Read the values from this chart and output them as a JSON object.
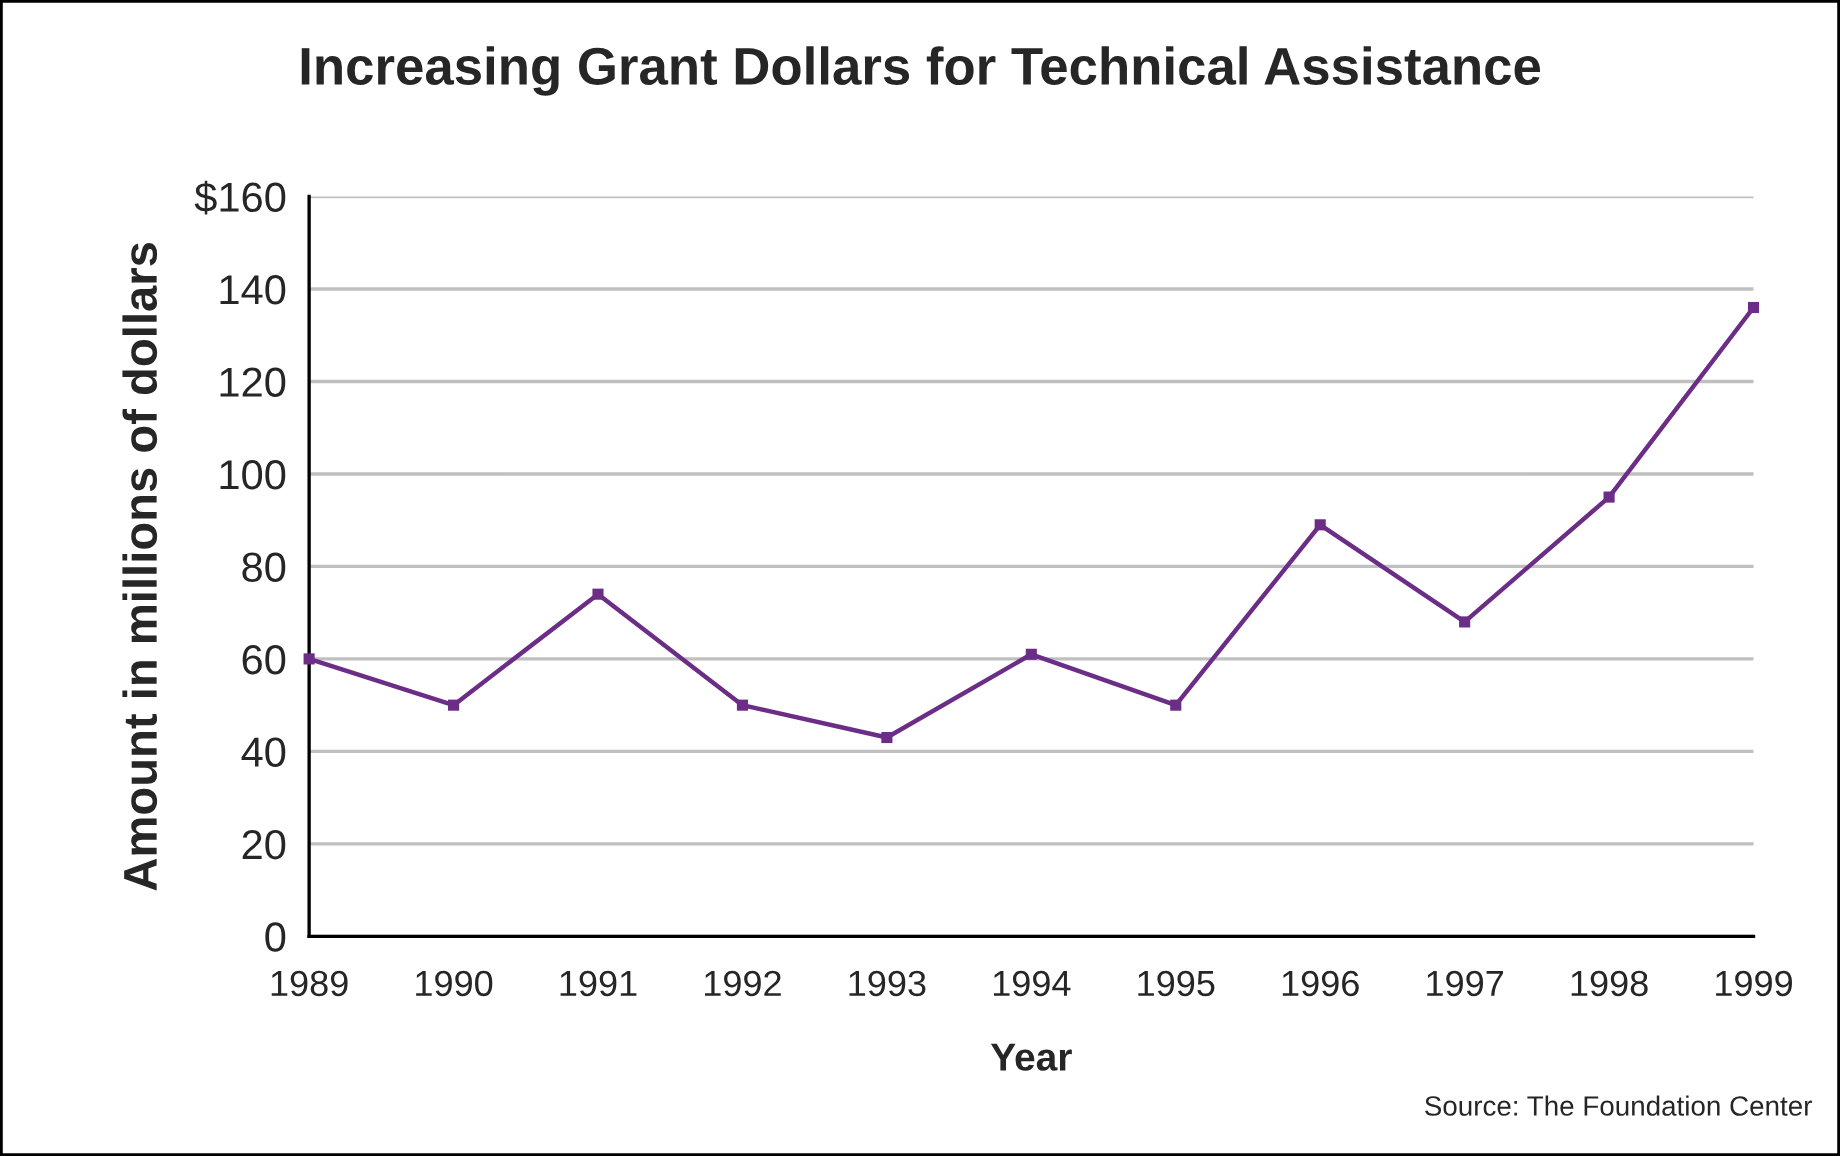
{
  "chart_data": {
    "type": "line",
    "title": "Increasing Grant Dollars for Technical Assistance",
    "xlabel": "Year",
    "ylabel": "Amount in millions of dollars",
    "x": [
      1989,
      1990,
      1991,
      1992,
      1993,
      1994,
      1995,
      1996,
      1997,
      1998,
      1999
    ],
    "series": [
      {
        "color": "#6b2d86",
        "values": [
          60,
          50,
          74,
          50,
          43,
          61,
          50,
          89,
          68,
          95,
          136
        ]
      }
    ],
    "xlim": [
      1989,
      1999
    ],
    "xticks": [
      1989,
      1990,
      1991,
      1992,
      1993,
      1994,
      1995,
      1996,
      1997,
      1998,
      1999
    ],
    "ylim": [
      0,
      160
    ],
    "yticks": [
      0,
      20,
      40,
      60,
      80,
      100,
      120,
      140,
      {
        "value": 160,
        "label": "$160"
      }
    ],
    "grid": "y",
    "marker": "square",
    "line_style": "solid",
    "legend": false,
    "annotations": [
      "Source: The Foundation Center"
    ]
  }
}
